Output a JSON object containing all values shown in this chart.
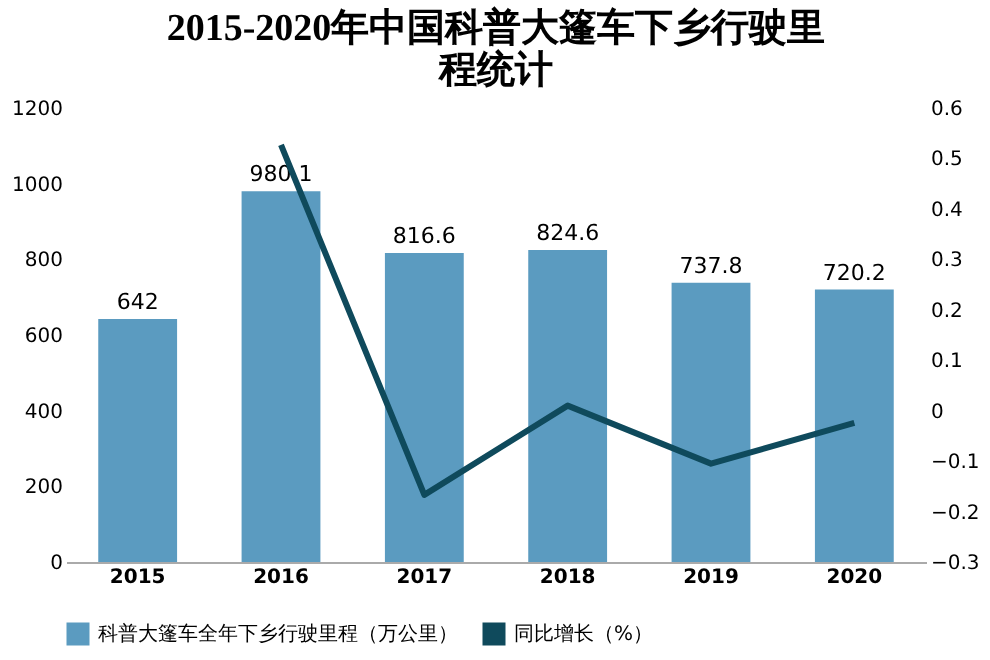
{
  "chart_data": {
    "type": "bar",
    "title": "2015-2020年中国科普大篷车下乡行驶里程统计",
    "categories": [
      "2015",
      "2016",
      "2017",
      "2018",
      "2019",
      "2020"
    ],
    "series": [
      {
        "name": "科普大篷车全年下乡行驶里程（万公里）",
        "color": "#5b9bc0",
        "values": [
          642,
          980.1,
          816.6,
          824.6,
          737.8,
          720.2
        ],
        "value_labels": [
          "642",
          "980.1",
          "816.6",
          "824.6",
          "737.8",
          "720.2"
        ]
      },
      {
        "name": "同比增长（%）",
        "type": "line",
        "axis": "y2",
        "color": "#0f4a5c",
        "values": [
          null,
          0.527,
          -0.167,
          0.01,
          -0.105,
          -0.024
        ]
      }
    ],
    "ylim": [
      0,
      1200
    ],
    "yticks": [
      0,
      200,
      400,
      600,
      800,
      1000,
      1200
    ],
    "y2lim": [
      -0.3,
      0.6
    ],
    "y2ticks": [
      -0.3,
      -0.2,
      -0.1,
      0,
      0.1,
      0.2,
      0.3,
      0.4,
      0.5,
      0.6
    ],
    "grid": false,
    "legend": "bottom",
    "marker": "none",
    "line_style": "solid"
  }
}
